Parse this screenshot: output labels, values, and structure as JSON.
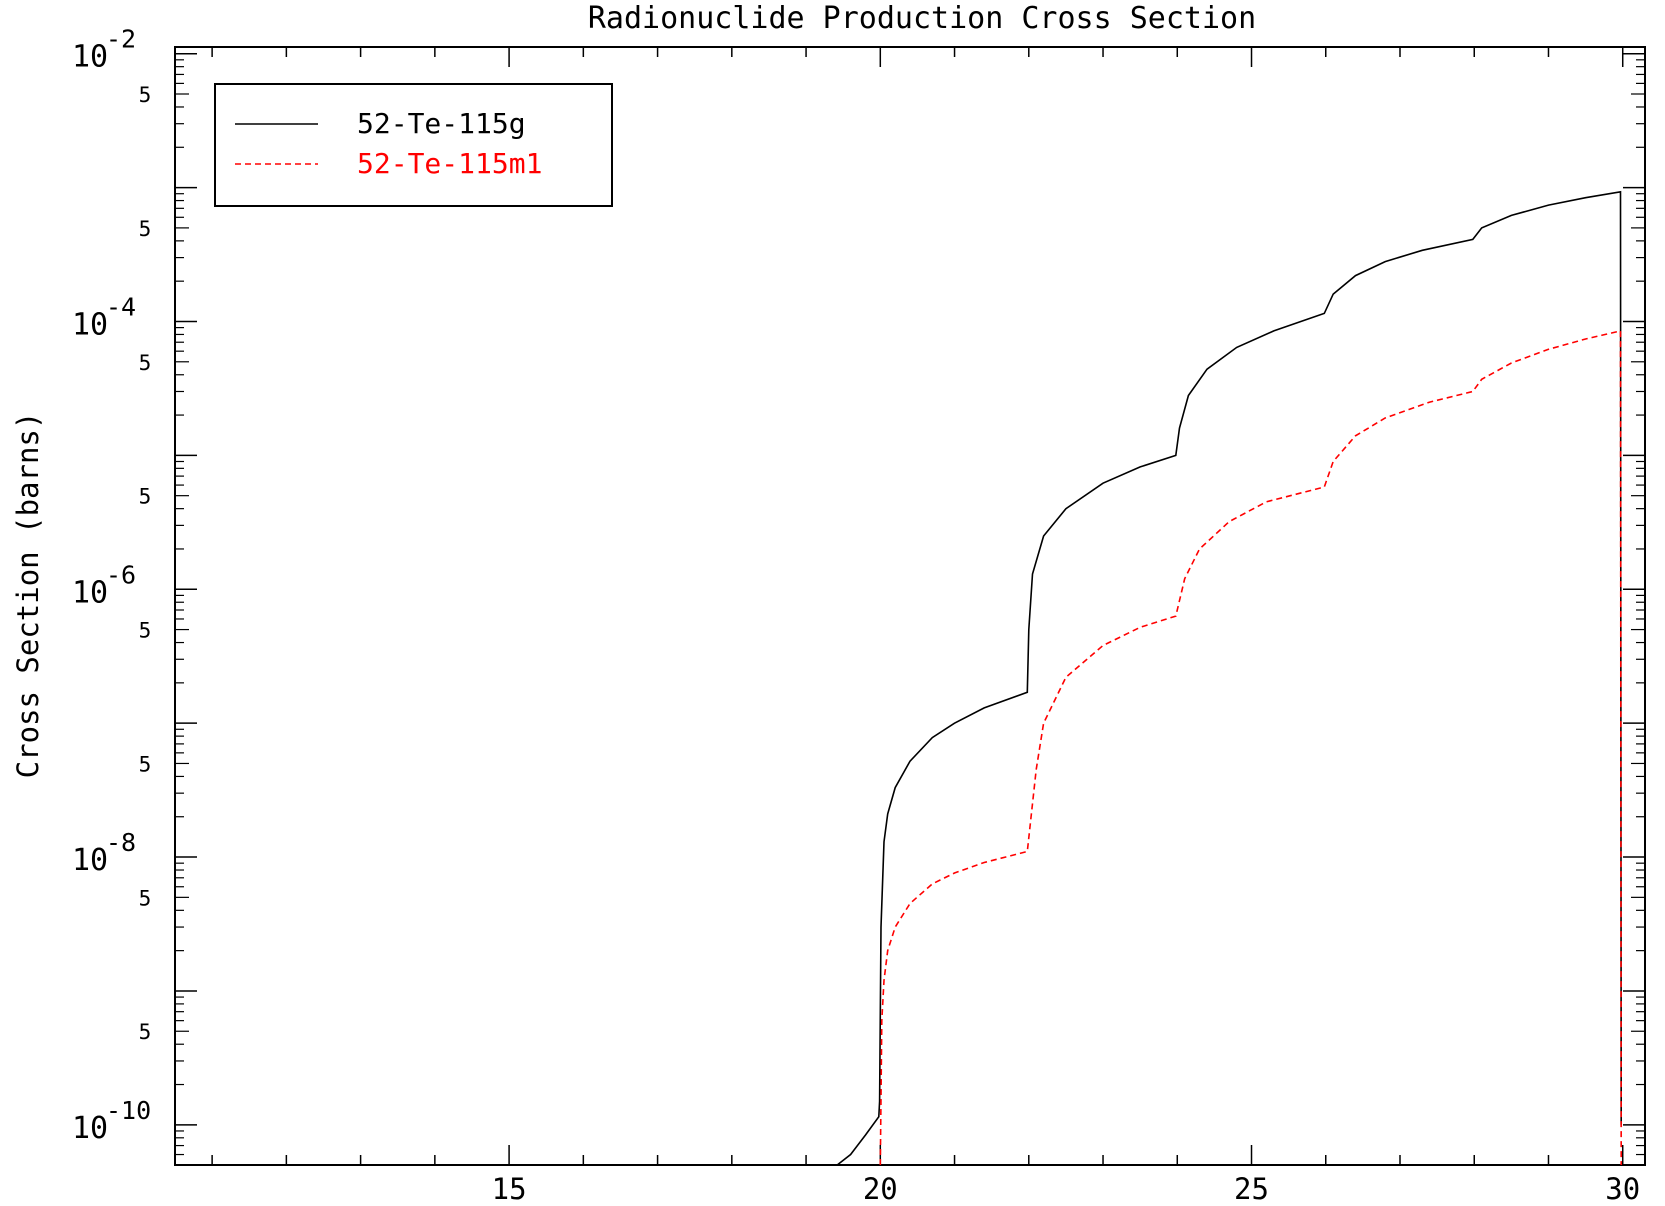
{
  "chart_data": {
    "type": "line",
    "title": "Radionuclide Production Cross Section",
    "xlabel": "",
    "ylabel": "Cross Section (barns)",
    "xlim": [
      10.5,
      30.3
    ],
    "ylim_log10": [
      -10.3,
      -1.95
    ],
    "yscale": "log",
    "grid": false,
    "legend_position": "top-left",
    "x_ticks": [
      {
        "value": 15,
        "label": "15"
      },
      {
        "value": 20,
        "label": "20"
      },
      {
        "value": 25,
        "label": "25"
      },
      {
        "value": 30,
        "label": "30"
      }
    ],
    "y_major_ticks": [
      {
        "exp": -2,
        "label_base": "10",
        "label_exp": "-2"
      },
      {
        "exp": -3,
        "label_base": "",
        "label_exp": ""
      },
      {
        "exp": -4,
        "label_base": "10",
        "label_exp": "-4"
      },
      {
        "exp": -5,
        "label_base": "",
        "label_exp": ""
      },
      {
        "exp": -6,
        "label_base": "10",
        "label_exp": "-6"
      },
      {
        "exp": -7,
        "label_base": "",
        "label_exp": ""
      },
      {
        "exp": -8,
        "label_base": "10",
        "label_exp": "-8"
      },
      {
        "exp": -9,
        "label_base": "",
        "label_exp": ""
      },
      {
        "exp": -10,
        "label_base": "10",
        "label_exp": "-10"
      }
    ],
    "y_minor_label": "5",
    "series": [
      {
        "name": "52-Te-115g",
        "color": "#000000",
        "dash": "solid",
        "points": [
          [
            19.42,
            4.2e-11
          ],
          [
            19.6,
            6e-11
          ],
          [
            19.8,
            8.4e-11
          ],
          [
            19.98,
            1.15e-10
          ],
          [
            19.99,
            1.5e-10
          ],
          [
            20.01,
            3e-09
          ],
          [
            20.05,
            1.3e-08
          ],
          [
            20.1,
            2.1e-08
          ],
          [
            20.2,
            3.3e-08
          ],
          [
            20.4,
            5.2e-08
          ],
          [
            20.7,
            7.8e-08
          ],
          [
            21.0,
            1e-07
          ],
          [
            21.4,
            1.3e-07
          ],
          [
            21.98,
            1.7e-07
          ],
          [
            22.0,
            5e-07
          ],
          [
            22.05,
            1.3e-06
          ],
          [
            22.2,
            2.5e-06
          ],
          [
            22.5,
            4e-06
          ],
          [
            23.0,
            6.2e-06
          ],
          [
            23.5,
            8.2e-06
          ],
          [
            23.98,
            1e-05
          ],
          [
            24.03,
            1.6e-05
          ],
          [
            24.15,
            2.8e-05
          ],
          [
            24.4,
            4.4e-05
          ],
          [
            24.8,
            6.4e-05
          ],
          [
            25.3,
            8.5e-05
          ],
          [
            25.98,
            0.000115
          ],
          [
            26.1,
            0.00016
          ],
          [
            26.4,
            0.00022
          ],
          [
            26.8,
            0.00028
          ],
          [
            27.3,
            0.00034
          ],
          [
            27.98,
            0.00041
          ],
          [
            28.1,
            0.0005
          ],
          [
            28.5,
            0.00062
          ],
          [
            29.0,
            0.00074
          ],
          [
            29.5,
            0.00084
          ],
          [
            29.97,
            0.00093
          ],
          [
            29.98,
            1e-10
          ]
        ]
      },
      {
        "name": "52-Te-115m1",
        "color": "#ff0000",
        "dash": "dashed",
        "points": [
          [
            20.0,
            1e-11
          ],
          [
            20.02,
            6e-10
          ],
          [
            20.05,
            1.2e-09
          ],
          [
            20.1,
            2e-09
          ],
          [
            20.2,
            3e-09
          ],
          [
            20.4,
            4.5e-09
          ],
          [
            20.7,
            6.3e-09
          ],
          [
            21.0,
            7.6e-09
          ],
          [
            21.4,
            9.1e-09
          ],
          [
            21.98,
            1.1e-08
          ],
          [
            22.1,
            4.5e-08
          ],
          [
            22.2,
            1e-07
          ],
          [
            22.5,
            2.2e-07
          ],
          [
            23.0,
            3.8e-07
          ],
          [
            23.5,
            5.2e-07
          ],
          [
            23.98,
            6.3e-07
          ],
          [
            24.1,
            1.2e-06
          ],
          [
            24.3,
            2e-06
          ],
          [
            24.7,
            3.2e-06
          ],
          [
            25.2,
            4.5e-06
          ],
          [
            25.98,
            5.8e-06
          ],
          [
            26.1,
            9e-06
          ],
          [
            26.4,
            1.4e-05
          ],
          [
            26.8,
            1.9e-05
          ],
          [
            27.4,
            2.5e-05
          ],
          [
            27.98,
            3e-05
          ],
          [
            28.1,
            3.7e-05
          ],
          [
            28.5,
            4.9e-05
          ],
          [
            29.0,
            6.2e-05
          ],
          [
            29.5,
            7.4e-05
          ],
          [
            29.97,
            8.5e-05
          ],
          [
            29.98,
            1e-11
          ]
        ]
      }
    ]
  }
}
